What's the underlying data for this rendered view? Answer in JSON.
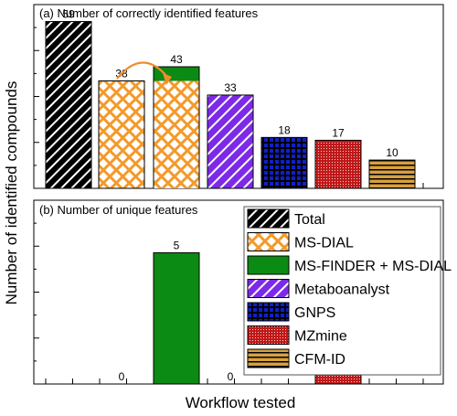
{
  "figure": {
    "ylabel": "Number of identified compounds",
    "xlabel": "Workflow tested"
  },
  "legend": {
    "placement": "right of panel (b)",
    "items": [
      {
        "label": "Total",
        "pattern": "diagonal-stripes",
        "color": "#000000"
      },
      {
        "label": "MS-DIAL",
        "pattern": "crosshatch",
        "color": "#f39a2b"
      },
      {
        "label": "MS-FINDER + MS-DIAL",
        "pattern": "solid",
        "color": "#0b8a14"
      },
      {
        "label": "Metaboanalyst",
        "pattern": "diagonal-stripes",
        "color": "#7d2ae8"
      },
      {
        "label": "GNPS",
        "pattern": "grid",
        "color": "#1020c8"
      },
      {
        "label": "MZmine",
        "pattern": "fine-grid",
        "color": "#c01818"
      },
      {
        "label": "CFM-ID",
        "pattern": "horizontal-stripes",
        "color": "#d8a040"
      }
    ]
  },
  "chart_data": [
    {
      "type": "bar",
      "title": "(a) Number of correctly identified features",
      "categories": [
        "Total",
        "MS-DIAL",
        "MS-FINDER + MS-DIAL",
        "Metaboanalyst",
        "GNPS",
        "MZmine",
        "CFM-ID"
      ],
      "values": [
        59,
        38,
        43,
        33,
        18,
        17,
        10
      ],
      "data_labels": [
        "59",
        "38",
        "43",
        "33",
        "18",
        "17",
        "10"
      ],
      "ylim": [
        0,
        65
      ],
      "grid": false,
      "annotation": "curved arrow from MS-DIAL bar to MS-FINDER + MS-DIAL bar; MS-FINDER + MS-DIAL bar has MS-DIAL portion overlaid (38) with added portion on top"
    },
    {
      "type": "bar",
      "title": "(b) Number of unique features",
      "categories": [
        "Total",
        "MS-DIAL",
        "MS-FINDER + MS-DIAL",
        "Metaboanalyst",
        "GNPS",
        "MZmine",
        "CFM-ID"
      ],
      "values": [
        null,
        0,
        5,
        0,
        null,
        1,
        null
      ],
      "data_labels": [
        "",
        "0",
        "5",
        "0",
        "",
        "1",
        ""
      ],
      "ylim": [
        0,
        7
      ],
      "grid": false
    }
  ]
}
